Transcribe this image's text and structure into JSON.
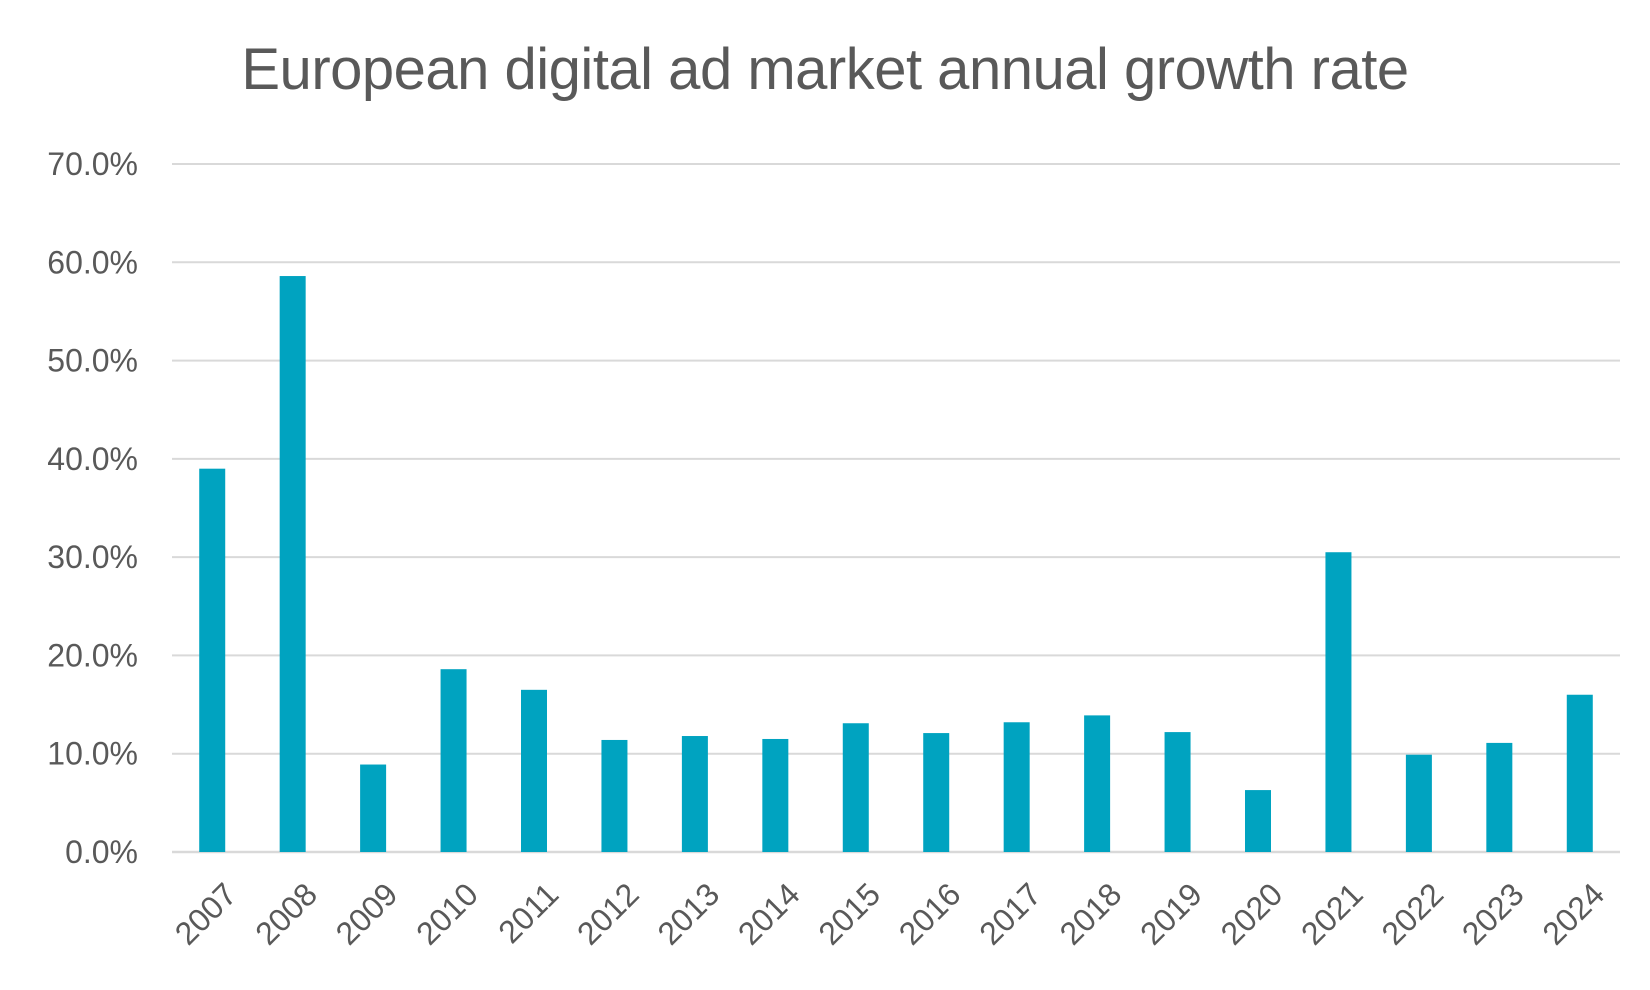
{
  "chart_data": {
    "type": "bar",
    "title": "European digital ad market annual growth rate",
    "xlabel": "",
    "ylabel": "",
    "categories": [
      "2007",
      "2008",
      "2009",
      "2010",
      "2011",
      "2012",
      "2013",
      "2014",
      "2015",
      "2016",
      "2017",
      "2018",
      "2019",
      "2020",
      "2021",
      "2022",
      "2023",
      "2024"
    ],
    "values": [
      39.0,
      58.6,
      8.9,
      18.6,
      16.5,
      11.4,
      11.8,
      11.5,
      13.1,
      12.1,
      13.2,
      13.9,
      12.2,
      6.3,
      30.5,
      9.9,
      11.1,
      16.0
    ],
    "y_ticks": [
      "0.0%",
      "10.0%",
      "20.0%",
      "30.0%",
      "40.0%",
      "50.0%",
      "60.0%",
      "70.0%"
    ],
    "ylim": [
      0,
      70
    ],
    "grid": true,
    "legend": "none",
    "colors": {
      "bar": "#00A3C0",
      "grid": "#D9D9D9",
      "text": "#595959"
    }
  }
}
